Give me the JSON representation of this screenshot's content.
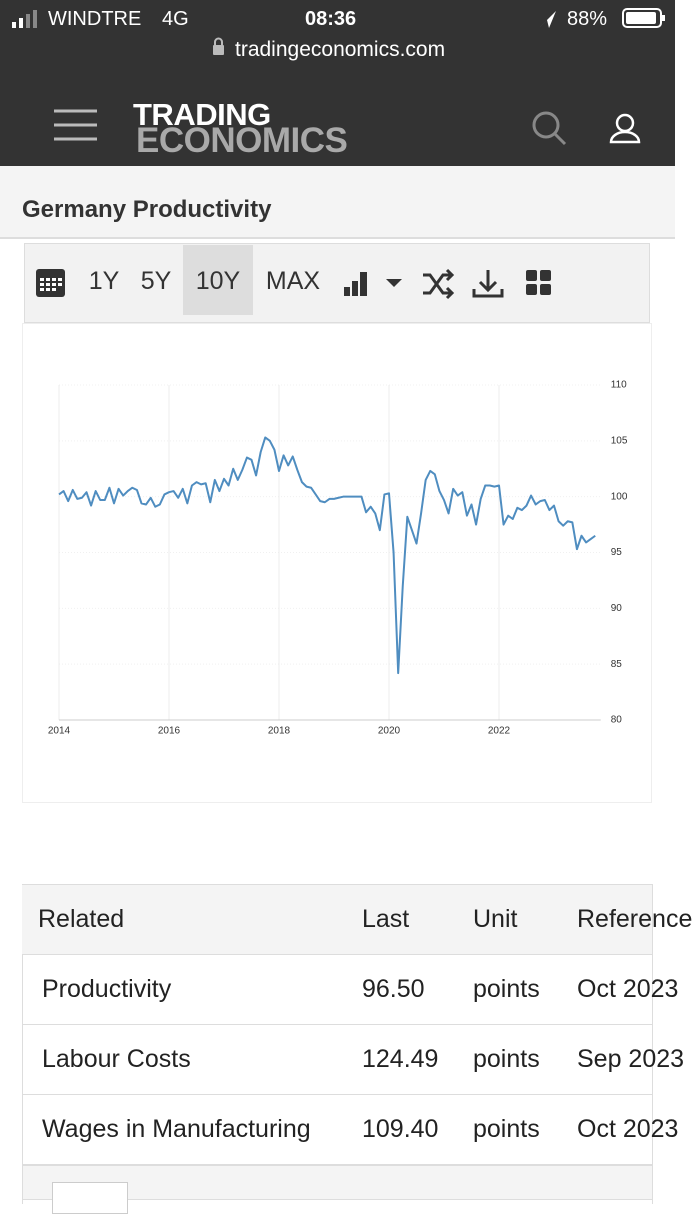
{
  "status_bar": {
    "carrier": "WINDTRE",
    "network": "4G",
    "time": "08:36",
    "battery": "88%"
  },
  "browser": {
    "url": "tradingeconomics.com"
  },
  "header": {
    "logo_top": "TRADING",
    "logo_bottom": "ECONOMICS"
  },
  "page": {
    "title": "Germany Productivity"
  },
  "toolbar": {
    "ranges": [
      "1Y",
      "5Y",
      "10Y",
      "MAX"
    ]
  },
  "chart_data": {
    "type": "line",
    "color": "#4f8dc0",
    "grid": true,
    "y_axis_side": "right",
    "xlim": [
      2014,
      2023.85
    ],
    "xticks": [
      2014,
      2016,
      2018,
      2020,
      2022
    ],
    "ylim": [
      80,
      110
    ],
    "yticks": [
      80,
      85,
      90,
      95,
      100,
      105,
      110
    ],
    "x": [
      2014.0,
      2014.083,
      2014.167,
      2014.25,
      2014.333,
      2014.417,
      2014.5,
      2014.583,
      2014.667,
      2014.75,
      2014.833,
      2014.917,
      2015.0,
      2015.083,
      2015.167,
      2015.25,
      2015.333,
      2015.417,
      2015.5,
      2015.583,
      2015.667,
      2015.75,
      2015.833,
      2015.917,
      2016.0,
      2016.083,
      2016.167,
      2016.25,
      2016.333,
      2016.417,
      2016.5,
      2016.583,
      2016.667,
      2016.75,
      2016.833,
      2016.917,
      2017.0,
      2017.083,
      2017.167,
      2017.25,
      2017.333,
      2017.417,
      2017.5,
      2017.583,
      2017.667,
      2017.75,
      2017.833,
      2017.917,
      2018.0,
      2018.083,
      2018.167,
      2018.25,
      2018.333,
      2018.417,
      2018.5,
      2018.583,
      2018.667,
      2018.75,
      2018.833,
      2018.917,
      2019.0,
      2019.083,
      2019.167,
      2019.25,
      2019.333,
      2019.417,
      2019.5,
      2019.583,
      2019.667,
      2019.75,
      2019.833,
      2019.917,
      2020.0,
      2020.083,
      2020.167,
      2020.25,
      2020.333,
      2020.417,
      2020.5,
      2020.583,
      2020.667,
      2020.75,
      2020.833,
      2020.917,
      2021.0,
      2021.083,
      2021.167,
      2021.25,
      2021.333,
      2021.417,
      2021.5,
      2021.583,
      2021.667,
      2021.75,
      2021.833,
      2021.917,
      2022.0,
      2022.083,
      2022.167,
      2022.25,
      2022.333,
      2022.417,
      2022.5,
      2022.583,
      2022.667,
      2022.75,
      2022.833,
      2022.917,
      2023.0,
      2023.083,
      2023.167,
      2023.25,
      2023.333,
      2023.417,
      2023.5,
      2023.583,
      2023.667,
      2023.75
    ],
    "values": [
      100.2,
      100.5,
      99.6,
      100.6,
      99.8,
      99.9,
      100.4,
      99.2,
      100.5,
      99.7,
      99.7,
      100.8,
      99.4,
      100.7,
      100.1,
      100.5,
      100.8,
      100.6,
      99.4,
      99.3,
      99.9,
      99.1,
      99.3,
      100.2,
      100.4,
      100.5,
      99.9,
      100.7,
      99.4,
      101.0,
      101.3,
      101.1,
      101.2,
      99.5,
      101.5,
      100.5,
      101.6,
      101.0,
      102.5,
      101.5,
      102.4,
      103.5,
      103.3,
      101.9,
      104.0,
      105.3,
      105.0,
      104.2,
      102.3,
      103.7,
      102.8,
      103.6,
      102.4,
      101.3,
      100.9,
      100.8,
      100.2,
      99.6,
      99.5,
      99.8,
      99.8,
      99.9,
      100.0,
      100.0,
      100.0,
      100.0,
      100.0,
      98.6,
      99.1,
      98.5,
      97.0,
      100.2,
      100.3,
      95.0,
      84.2,
      92.0,
      98.2,
      97.0,
      95.8,
      98.5,
      101.5,
      102.3,
      102.0,
      100.5,
      99.7,
      98.5,
      100.7,
      100.1,
      100.4,
      98.3,
      99.3,
      97.5,
      99.8,
      101.0,
      101.0,
      100.9,
      101.0,
      97.5,
      98.3,
      98.0,
      99.0,
      98.8,
      99.2,
      100.1,
      99.3,
      99.6,
      99.7,
      98.8,
      99.2,
      97.8,
      97.4,
      97.8,
      97.7,
      95.3,
      96.5,
      95.9,
      96.2,
      96.5
    ]
  },
  "table": {
    "header": [
      "Related",
      "Last",
      "Unit",
      "Reference"
    ],
    "rows": [
      [
        "Productivity",
        "96.50",
        "points",
        "Oct 2023"
      ],
      [
        "Labour Costs",
        "124.49",
        "points",
        "Sep 2023"
      ],
      [
        "Wages in Manufacturing",
        "109.40",
        "points",
        "Oct 2023"
      ]
    ]
  }
}
